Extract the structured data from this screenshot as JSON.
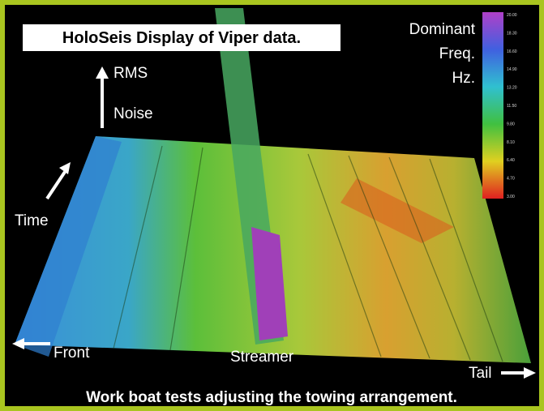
{
  "title": "HoloSeis Display of Viper data.",
  "legend": {
    "lines": [
      "Dominant",
      "Freq.",
      "Hz."
    ],
    "ticks": [
      "20.00",
      "18.30",
      "16.60",
      "14.90",
      "13.20",
      "11.50",
      "9.80",
      "8.10",
      "6.40",
      "4.70",
      "3.00"
    ]
  },
  "labels": {
    "rms": "RMS",
    "noise": "Noise",
    "time": "Time",
    "front": "Front",
    "streamer": "Streamer",
    "tail": "Tail"
  },
  "caption": "Work boat tests adjusting the towing arrangement."
}
